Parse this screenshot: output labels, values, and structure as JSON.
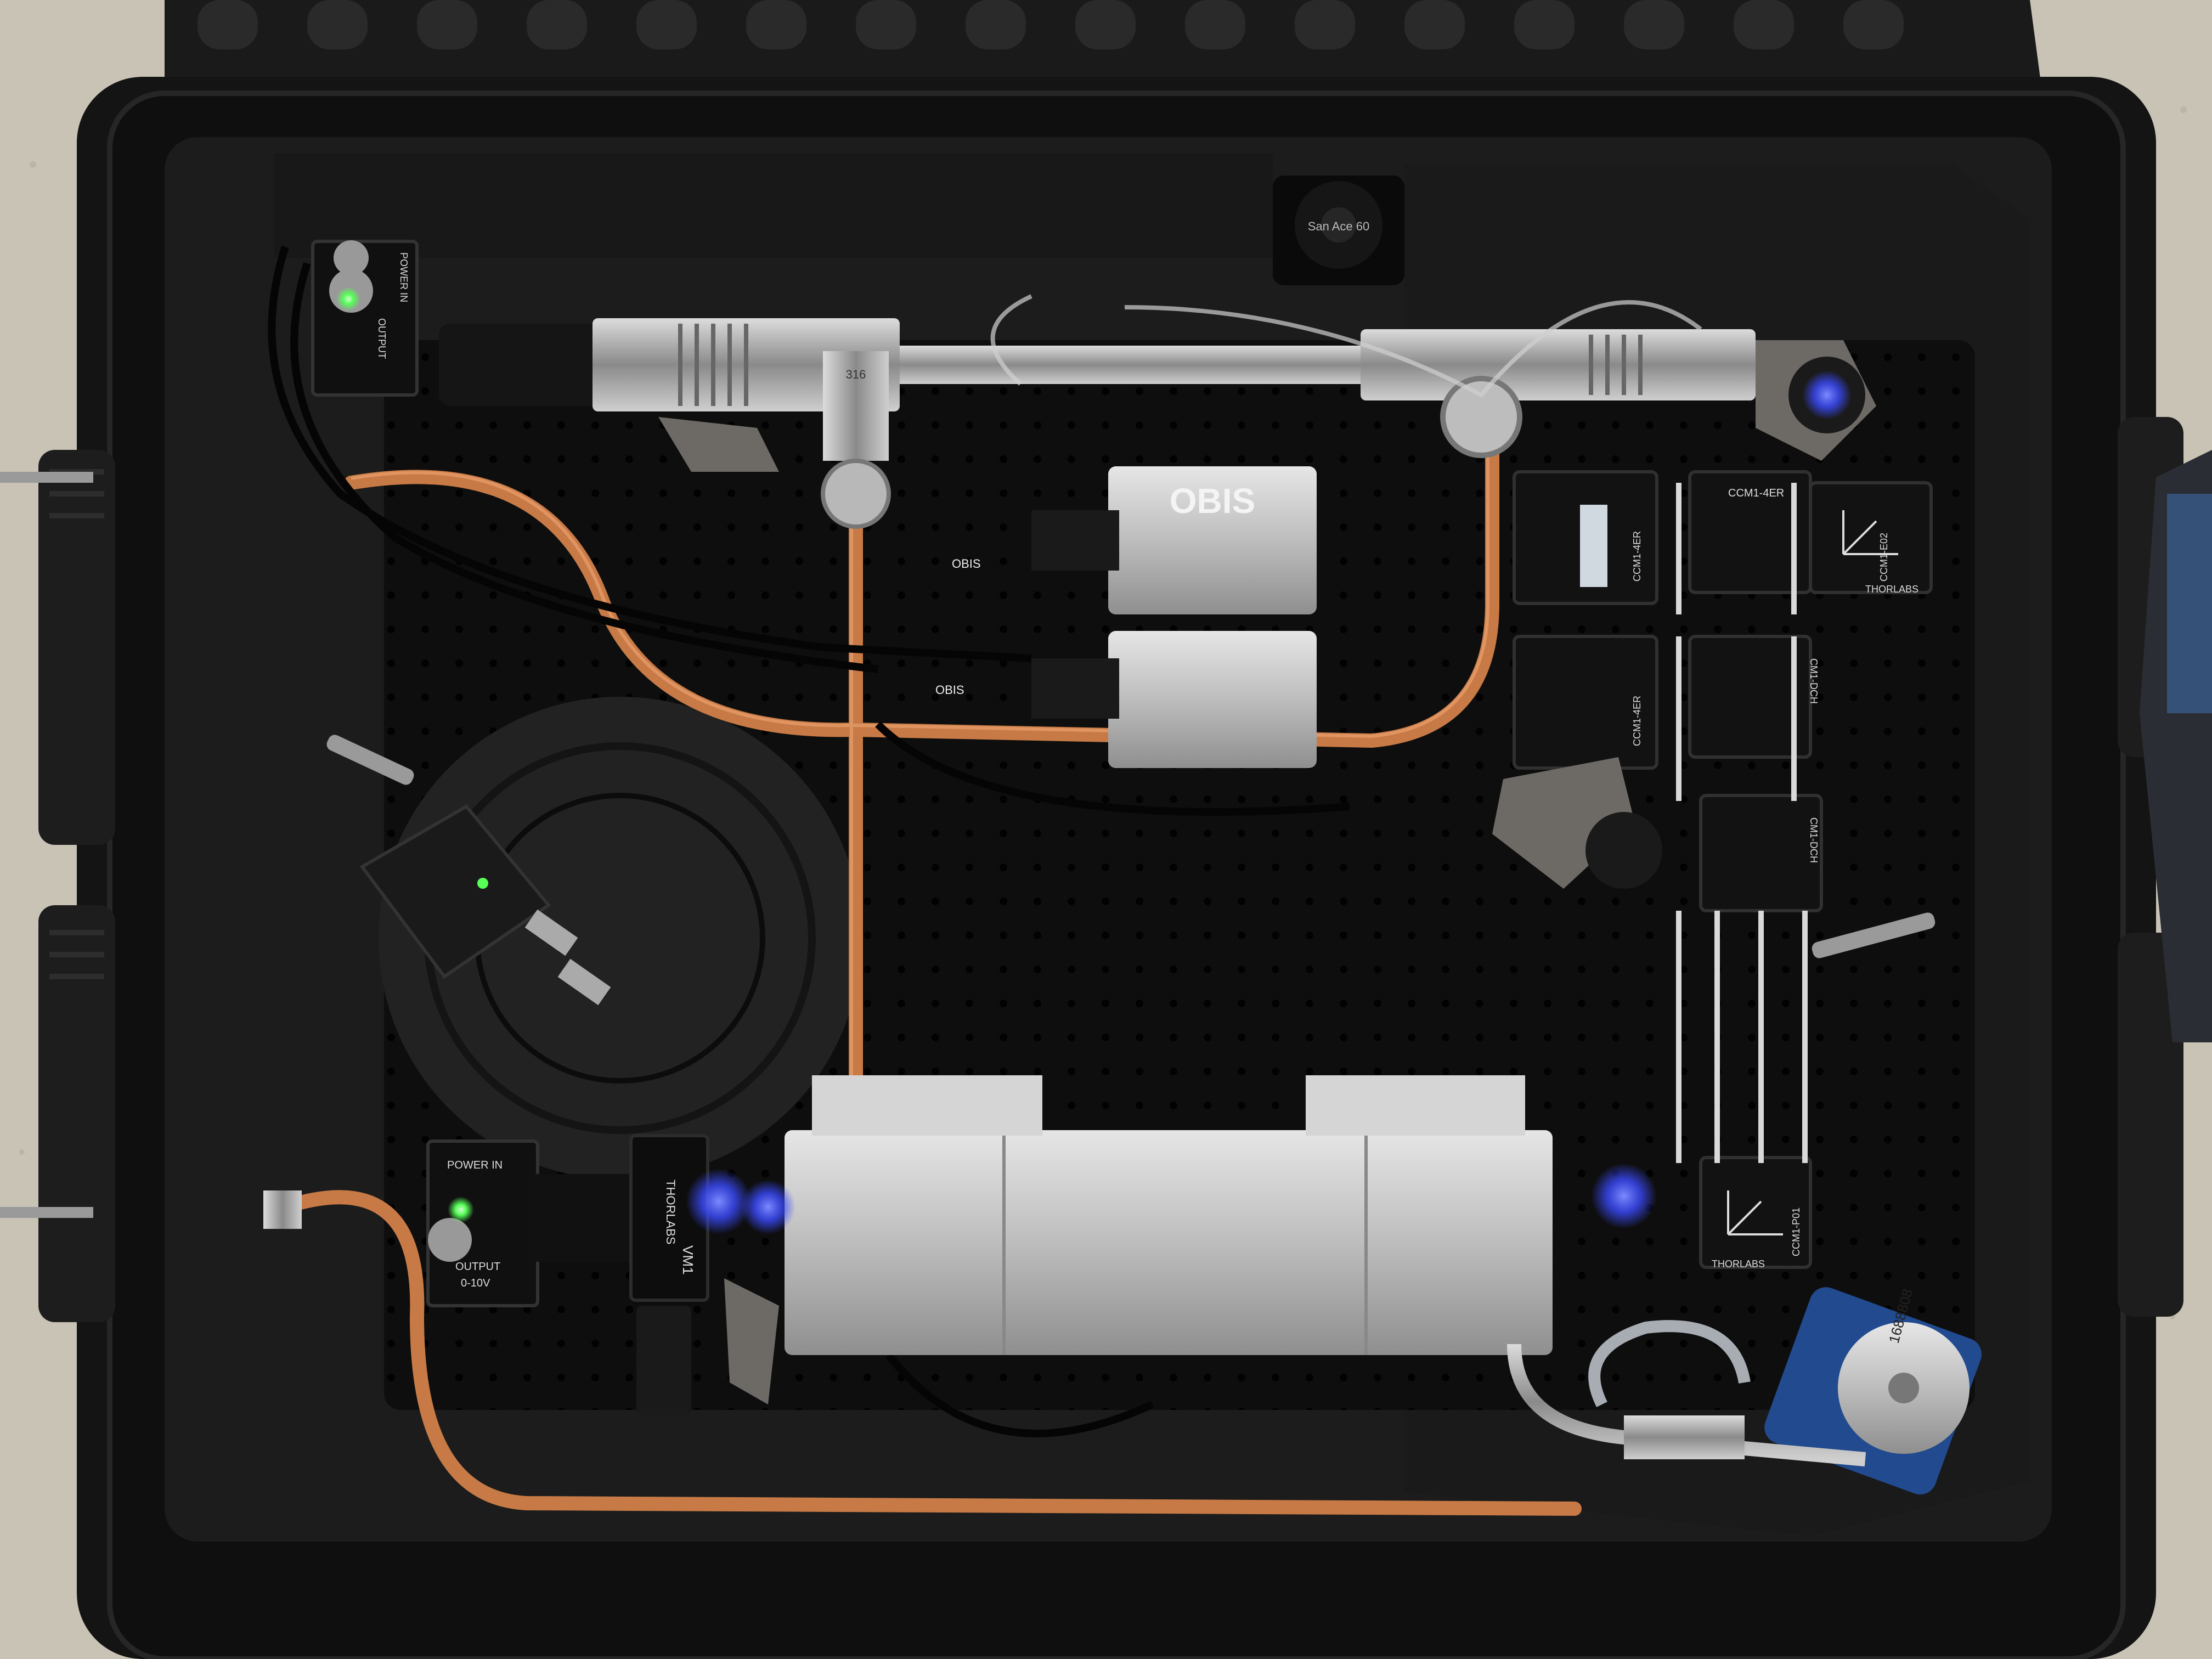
{
  "scene": {
    "description_free": true
  },
  "labels": {
    "obis_top": "OBIS",
    "obis_top_small": "OBIS",
    "obis_bottom_small": "OBIS",
    "thorlabs_ccm1_4er_a": "CCM1-4ER",
    "thorlabs_ccm1_4er_b": "CCM1-4ER",
    "thorlabs_ccm1_4er_c": "CCM1-4ER",
    "thorlabs_ccm1_e02": "CCM1-E02",
    "thorlabs_cm1_dch_a": "CM1-DCH",
    "thorlabs_cm1_dch_b": "CM1-DCH",
    "thorlabs_ccm1_p01": "CCM1-P01",
    "thorlabs_brand_a": "THORLABS",
    "thorlabs_brand_b": "THORLABS",
    "thorlabs_brand_c": "THORLABS",
    "thorlabs_vm": "VM1",
    "power_in_top": "POWER IN",
    "output_top": "OUTPUT",
    "power_in_bottom": "POWER IN",
    "output_bottom": "OUTPUT",
    "output_range": "0-10V",
    "fan_label": "San Ace 60",
    "motor_serial": "1688808",
    "tee_marking": "316"
  },
  "colors": {
    "foam": "#1c1c1c",
    "case": "#121212",
    "breadboard": "#0d0d0d",
    "copper": "#c77a45",
    "aluminum": "#c8c8c8",
    "steel": "#a9a9a9",
    "led_green": "#57ff57",
    "led_blue": "#3b4bff",
    "floor": "#c9c3b6"
  }
}
